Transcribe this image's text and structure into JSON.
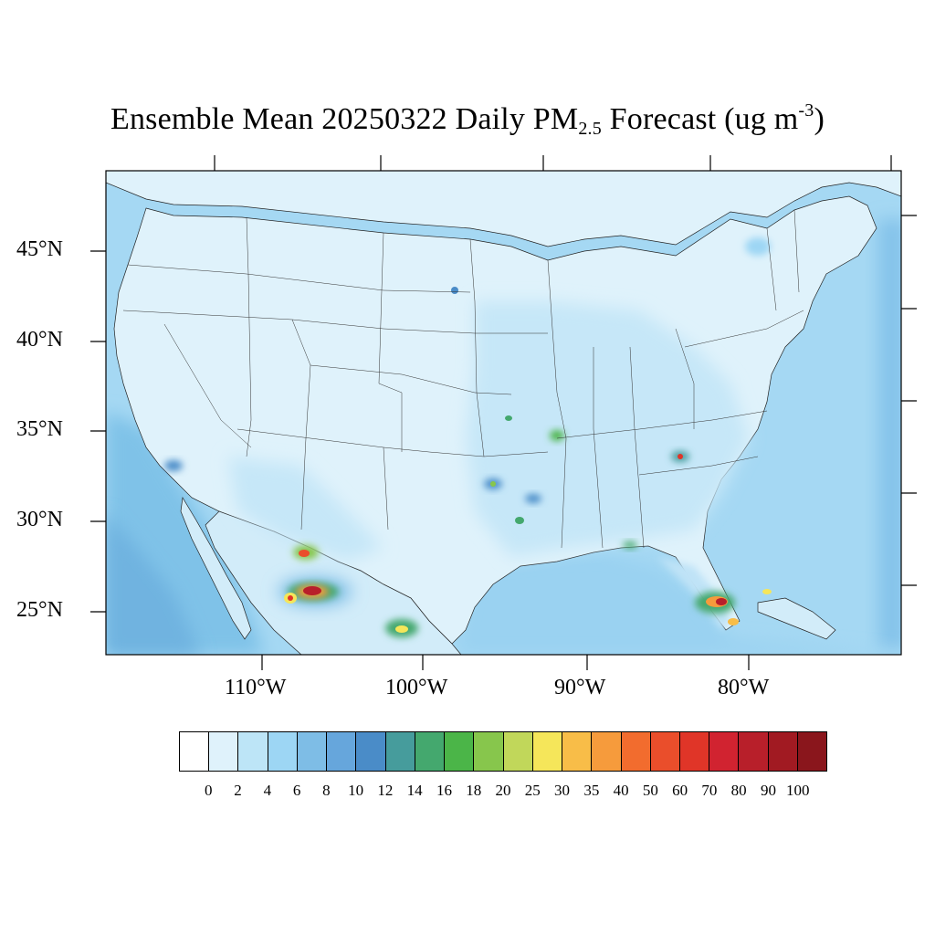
{
  "title": {
    "main": "Ensemble Mean 20250322 Daily PM",
    "subscript": "2.5",
    "tail": " Forecast (ug m",
    "superscript": "-3",
    "close": ")"
  },
  "latitude_labels": [
    "45°N",
    "40°N",
    "35°N",
    "30°N",
    "25°N"
  ],
  "longitude_labels": [
    "110°W",
    "100°W",
    "90°W",
    "80°W"
  ],
  "colorbar": {
    "labels": [
      "0",
      "2",
      "4",
      "6",
      "8",
      "10",
      "12",
      "14",
      "16",
      "18",
      "20",
      "25",
      "30",
      "35",
      "40",
      "50",
      "60",
      "70",
      "80",
      "90",
      "100"
    ],
    "colors": [
      "#ffffff",
      "#dff2fb",
      "#bde5f7",
      "#9dd6f4",
      "#7ebde6",
      "#66a6dc",
      "#4a8cc8",
      "#469c9c",
      "#44a86e",
      "#4bb548",
      "#87c64c",
      "#c1d75a",
      "#f5e65a",
      "#f8bd48",
      "#f69b3c",
      "#f26c2e",
      "#ea4e2b",
      "#e03528",
      "#d12330",
      "#b81f2a",
      "#a11a22",
      "#8a161c"
    ]
  },
  "map": {
    "background_ocean": "#9fd5f2",
    "land_base": "#dff2fb"
  }
}
